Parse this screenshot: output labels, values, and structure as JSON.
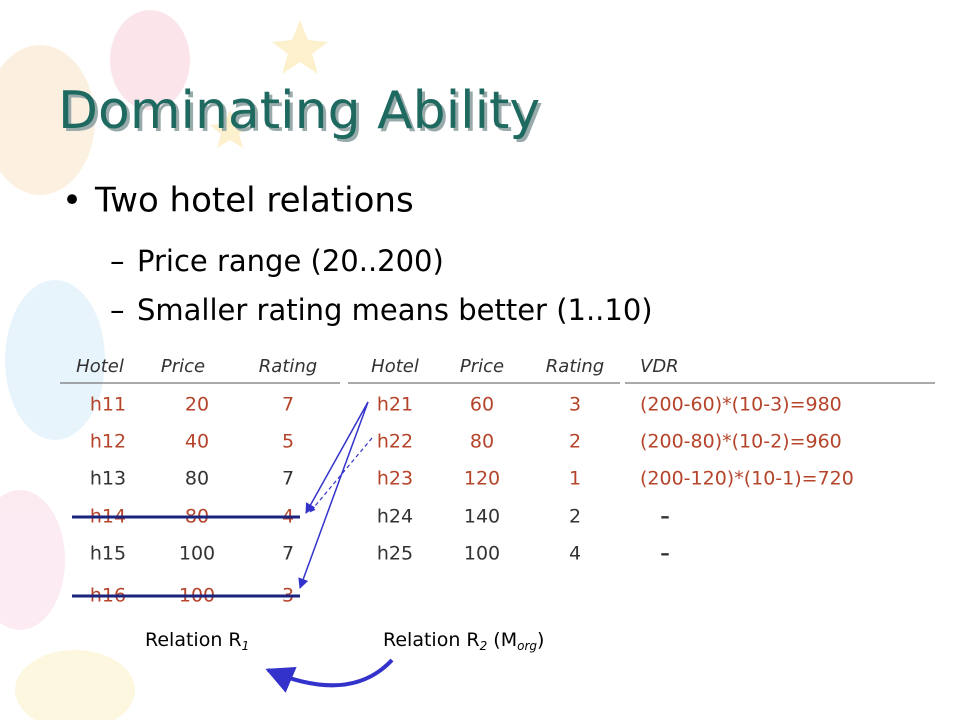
{
  "title": "Dominating Ability",
  "bullets": [
    {
      "text": "Two hotel relations",
      "children": [
        "Price range (20..200)",
        "Smaller rating means better (1..10)"
      ]
    }
  ],
  "table1": {
    "headers": [
      "Hotel",
      "Price",
      "Rating"
    ],
    "rows": [
      [
        "h11",
        20,
        7
      ],
      [
        "h12",
        40,
        5
      ],
      [
        "h13",
        80,
        7
      ],
      [
        "h14",
        80,
        4
      ],
      [
        "h15",
        100,
        7
      ],
      [
        "h16",
        100,
        3
      ]
    ],
    "caption": [
      "Relation R",
      "1"
    ]
  },
  "table2": {
    "headers": [
      "Hotel",
      "Price",
      "Rating",
      "VDR"
    ],
    "rows": [
      [
        "h21",
        60,
        3,
        "(200-60)*(10-3)=980"
      ],
      [
        "h22",
        80,
        2,
        "(200-80)*(10-2)=960"
      ],
      [
        "h23",
        120,
        1,
        "(200-120)*(10-1)=720"
      ],
      [
        "h24",
        140,
        2,
        "–"
      ],
      [
        "h25",
        100,
        4,
        "–"
      ]
    ],
    "caption": [
      "Relation R",
      "2",
      " (M",
      "org",
      ")"
    ]
  }
}
